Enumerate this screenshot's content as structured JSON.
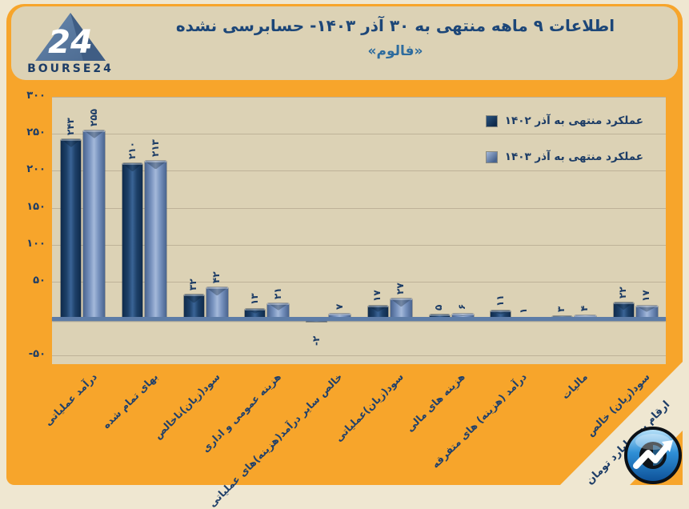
{
  "brand": {
    "wordmark": "BOURSE24",
    "numeral": "24"
  },
  "header": {
    "title": "اطلاعات ۹  ماهه منتهی به ۳۰  آذر  ۱۴۰۳- حسابرسی نشده",
    "subtitle": "«فالوم»"
  },
  "corner_note": "ارقام به میلیارد تومان",
  "colors": {
    "background_orange": "#f7a52b",
    "panel_beige": "#dcd2b5",
    "frame_cream": "#efe7d1",
    "navy_text": "#1c3c66",
    "subtitle_blue": "#2e6c9e",
    "dark_bar": "#1d4068",
    "light_bar": "#7590bc",
    "axis_steel": "#5d7ca7"
  },
  "chart_data": {
    "type": "bar",
    "title": "اطلاعات ۹ ماهه منتهی به ۳۰ آذر ۱۴۰۳ - حسابرسی نشده",
    "company": "فالوم",
    "unit": "میلیارد تومان",
    "grid": true,
    "legend_position": "top-right",
    "categories": [
      "درآمد عملیاتی",
      "بهای تمام شده",
      "سود(زیان)ناخالص",
      "هزینه عمومی و اداری",
      "خالص سایر درآمد(هزینه)های عملیاتی",
      "سود(زیان)عملیاتی",
      "هزینه های مالی",
      "درآمد (هزینه) های متفرقه",
      "مالیات",
      "سود(زیان) خالص"
    ],
    "series": [
      {
        "name": "عملکرد منتهی به آذر ۱۴۰۲",
        "color_key": "dark",
        "values": [
          243,
          210,
          32,
          13,
          -2,
          17,
          5,
          11,
          3,
          22
        ],
        "value_labels": [
          "۲۴۳",
          "۲۱۰",
          "۳۲",
          "۱۳",
          "-۲",
          "۱۷",
          "۵",
          "۱۱",
          "۳",
          "۲۲"
        ]
      },
      {
        "name": "عملکرد منتهی به آذر ۱۴۰۳",
        "color_key": "light",
        "values": [
          255,
          213,
          42,
          21,
          7,
          27,
          6,
          1,
          4,
          17
        ],
        "value_labels": [
          "۲۵۵",
          "۲۱۳",
          "۴۲",
          "۲۱",
          "۷",
          "۲۷",
          "۶",
          "۱",
          "۴",
          "۱۷"
        ]
      }
    ],
    "y_axis": {
      "min": -62,
      "max": 300,
      "ticks": [
        {
          "value": 300,
          "label": "۳۰۰"
        },
        {
          "value": 250,
          "label": "۲۵۰"
        },
        {
          "value": 200,
          "label": "۲۰۰"
        },
        {
          "value": 150,
          "label": "۱۵۰"
        },
        {
          "value": 100,
          "label": "۱۰۰"
        },
        {
          "value": 50,
          "label": "۵۰"
        },
        {
          "value": -50,
          "label": "-۵۰"
        }
      ]
    }
  }
}
